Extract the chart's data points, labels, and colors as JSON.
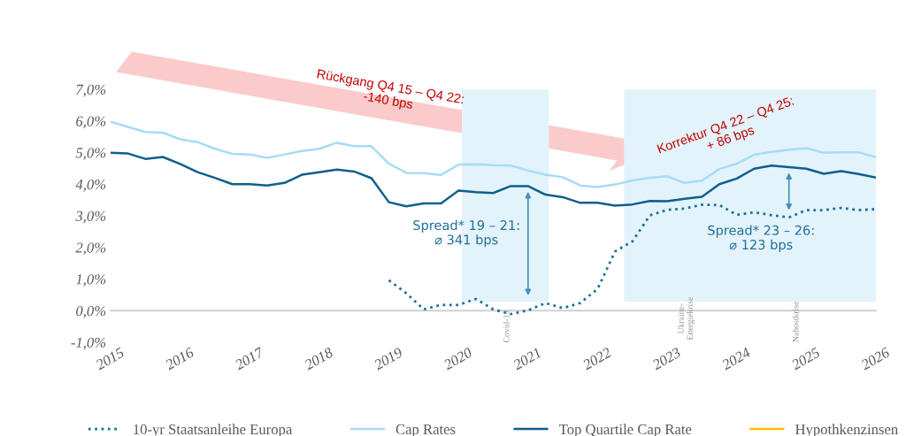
{
  "chart_data": {
    "type": "line",
    "x": [
      2015,
      2015.25,
      2015.5,
      2015.75,
      2016,
      2016.25,
      2016.5,
      2016.75,
      2017,
      2017.25,
      2017.5,
      2017.75,
      2018,
      2018.25,
      2018.5,
      2018.75,
      2019,
      2019.25,
      2019.5,
      2019.75,
      2020,
      2020.25,
      2020.5,
      2020.75,
      2021,
      2021.25,
      2021.5,
      2021.75,
      2022,
      2022.25,
      2022.5,
      2022.75,
      2023,
      2023.25,
      2023.5,
      2023.75,
      2024,
      2024.25,
      2024.5,
      2024.75,
      2025,
      2025.25,
      2025.5,
      2025.75,
      2026
    ],
    "series": [
      {
        "name": "10-yr Staatsanleihe Europa",
        "color": "#1f6f99",
        "line_style": "dotted",
        "x": [
          2019,
          2019.25,
          2019.5,
          2019.75,
          2020,
          2020.25,
          2020.5,
          2020.75,
          2021,
          2021.25,
          2021.5,
          2021.75,
          2022,
          2022.25,
          2022.5,
          2022.75,
          2023,
          2023.25,
          2023.5,
          2023.75,
          2024,
          2024.25,
          2024.5,
          2024.75,
          2025,
          2025.25,
          2025.5,
          2025.75,
          2026
        ],
        "values": [
          0.96,
          0.55,
          0.04,
          0.18,
          0.18,
          0.37,
          0.04,
          -0.11,
          0.01,
          0.24,
          0.08,
          0.24,
          0.69,
          1.87,
          2.19,
          3.01,
          3.19,
          3.23,
          3.35,
          3.34,
          3.03,
          3.11,
          3.02,
          2.95,
          3.18,
          3.18,
          3.25,
          3.18,
          3.21
        ]
      },
      {
        "name": "Cap Rates",
        "color": "#a6dcf7",
        "line_style": "solid",
        "values": [
          5.97,
          5.81,
          5.65,
          5.63,
          5.42,
          5.33,
          5.12,
          4.96,
          4.94,
          4.83,
          4.94,
          5.05,
          5.12,
          5.31,
          5.2,
          5.2,
          4.65,
          4.36,
          4.35,
          4.29,
          4.62,
          4.63,
          4.6,
          4.59,
          4.43,
          4.3,
          4.22,
          3.96,
          3.91,
          3.99,
          4.12,
          4.2,
          4.25,
          4.04,
          4.11,
          4.48,
          4.65,
          4.93,
          5.02,
          5.09,
          5.14,
          4.99,
          5.01,
          5.01,
          4.85
        ]
      },
      {
        "name": "Top Quartile Cap Rate",
        "color": "#0e5f8c",
        "line_style": "solid",
        "values": [
          4.99,
          4.97,
          4.8,
          4.86,
          4.64,
          4.38,
          4.2,
          4.0,
          4.0,
          3.96,
          4.04,
          4.3,
          4.38,
          4.46,
          4.4,
          4.19,
          3.43,
          3.3,
          3.39,
          3.39,
          3.8,
          3.75,
          3.72,
          3.94,
          3.94,
          3.67,
          3.59,
          3.41,
          3.41,
          3.32,
          3.36,
          3.47,
          3.46,
          3.54,
          3.6,
          4.0,
          4.18,
          4.49,
          4.59,
          4.54,
          4.49,
          4.33,
          4.41,
          4.32,
          4.21
        ]
      },
      {
        "name": "Hypothkenzinsen",
        "color": "#ffc000",
        "line_style": "solid",
        "values": [
          null,
          null,
          null,
          null,
          null,
          null,
          null,
          null,
          null,
          null,
          null,
          null,
          null,
          null,
          null,
          null,
          null,
          null,
          null,
          null,
          null,
          null,
          null,
          null,
          null,
          null,
          null,
          null,
          null,
          null,
          null,
          null,
          null,
          null,
          null,
          null,
          null,
          null,
          null,
          null,
          null,
          null,
          null,
          null,
          null
        ]
      }
    ],
    "xlim": [
      2015,
      2026
    ],
    "xticks": [
      2015,
      2016,
      2017,
      2018,
      2019,
      2020,
      2021,
      2022,
      2023,
      2024,
      2025,
      2026
    ],
    "ylim": [
      -1,
      7
    ],
    "yticks": [
      {
        "value": -1,
        "label": "-1,0%"
      },
      {
        "value": 0,
        "label": "0,0%"
      },
      {
        "value": 1,
        "label": "1,0%"
      },
      {
        "value": 2,
        "label": "2,0%"
      },
      {
        "value": 3,
        "label": "3,0%"
      },
      {
        "value": 4,
        "label": "4,0%"
      },
      {
        "value": 5,
        "label": "5,0%"
      },
      {
        "value": 6,
        "label": "6,0%"
      },
      {
        "value": 7,
        "label": "7,0%"
      }
    ],
    "bands": [
      {
        "axis": "x",
        "from": 2020.05,
        "to": 2021.3,
        "color": "#e3f3fc"
      },
      {
        "axis": "x",
        "from": 2022.38,
        "to": 2026,
        "color": "#e3f3fc"
      }
    ],
    "annotations": [
      "Rückgang Q4 15 – Q4 22:\n-140 bps",
      "Korrektur Q4 22 – Q4 25:\n+ 86 bps",
      {
        "text": "Spread* 19 – 21:\n⌀ 341 bps",
        "x": 2021,
        "y": 3.94
      },
      {
        "text": "Spread* 23 – 26:\n⌀ 123 bps",
        "x": 2024.75,
        "y": 4.54
      },
      "Covid-19",
      "Ukraine-\nEnergiekrise",
      "Nahostkrise"
    ],
    "grid": false,
    "legend": "bottom",
    "marker": "none"
  }
}
